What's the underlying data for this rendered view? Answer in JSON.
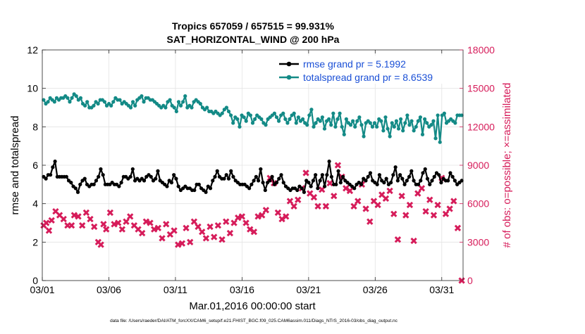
{
  "chart_data": {
    "type": "line",
    "title_line1": "Tropics 657059 / 657515 = 99.931%",
    "title_line2": "SAT_HORIZONTAL_WIND @ 200 hPa",
    "xlabel": "Mar.01,2016 00:00:00 start",
    "ylabel_left": "rmse and totalspread",
    "ylabel_right": "# of obs: o=possible; ×=assimilated",
    "footnote": "data file: /Users/raeder/DAI/ATM_forcXX/CAM6_setup/f.e21.FHIST_BGC.f09_025.CAM6assim.011/Diags_NTrS_2016-03/obs_diag_output.nc",
    "xlim": [
      0,
      31.6
    ],
    "ylim_left": [
      0,
      12
    ],
    "ylim_right": [
      0,
      18000
    ],
    "x_ticks": [
      0,
      5,
      10,
      15,
      20,
      25,
      30
    ],
    "x_tick_labels": [
      "03/01",
      "03/06",
      "03/11",
      "03/16",
      "03/21",
      "03/26",
      "03/31"
    ],
    "y_ticks_left": [
      0,
      2,
      4,
      6,
      8,
      10,
      12
    ],
    "y_ticks_right": [
      0,
      3000,
      6000,
      9000,
      12000,
      15000,
      18000
    ],
    "legend_position": "top-right",
    "colors": {
      "rmse": "#000000",
      "spread": "#138a86",
      "obs": "#d61c5a",
      "right_axis": "#d61c5a"
    },
    "series": [
      {
        "name": "rmse grand pr = 5.1992",
        "axis": "left",
        "marker": "dot",
        "values": [
          5.4,
          5.3,
          5.5,
          5.5,
          5.9,
          6.2,
          5.4,
          5.4,
          5.4,
          5.4,
          5.4,
          5.2,
          5.1,
          4.9,
          4.8,
          4.6,
          5.0,
          5.2,
          5.3,
          5.0,
          4.9,
          5.0,
          5.0,
          5.2,
          5.4,
          5.8,
          5.5,
          5.0,
          5.0,
          5.0,
          5.1,
          5.0,
          5.0,
          4.9,
          5.1,
          5.4,
          5.4,
          5.3,
          5.4,
          5.8,
          5.2,
          5.3,
          5.2,
          5.3,
          5.2,
          5.4,
          5.5,
          5.4,
          5.2,
          5.3,
          5.7,
          5.2,
          5.1,
          5.0,
          4.9,
          5.2,
          5.1,
          5.5,
          5.3,
          4.9,
          4.7,
          4.8,
          4.9,
          4.8,
          4.8,
          4.7,
          4.7,
          5.0,
          5.0,
          4.8,
          4.7,
          4.6,
          4.9,
          4.8,
          5.2,
          5.4,
          5.7,
          5.4,
          5.3,
          5.3,
          5.5,
          5.3,
          5.7,
          5.4,
          5.2,
          5.1,
          5.0,
          5.0,
          5.0,
          4.9,
          4.8,
          5.0,
          5.2,
          5.4,
          5.2,
          5.8,
          5.1,
          4.7,
          5.1,
          5.2,
          5.4,
          5.0,
          5.1,
          5.3,
          5.5,
          5.1,
          4.9,
          4.8,
          4.7,
          4.8,
          4.8,
          4.7,
          4.9,
          4.8,
          4.6,
          5.2,
          5.1,
          4.9,
          5.2,
          5.5,
          4.8,
          5.2,
          5.5,
          4.9,
          5.5,
          6.2,
          5.4,
          5.0,
          5.0,
          5.7,
          5.1,
          5.4,
          5.2,
          5.1,
          5.0,
          4.9,
          4.8,
          5.0,
          5.1,
          5.0,
          5.3,
          5.2,
          5.4,
          5.6,
          5.2,
          5.1,
          5.0,
          5.5,
          5.2,
          5.1,
          5.3,
          5.0,
          5.1,
          5.5,
          5.9,
          5.2,
          5.5,
          5.3,
          5.0,
          5.2,
          5.4,
          5.7,
          5.2,
          5.0,
          5.0,
          5.2,
          5.6,
          5.8,
          5.3,
          5.0,
          5.2,
          5.4,
          5.6,
          5.5,
          5.1,
          5.3,
          5.2,
          5.2,
          5.6,
          5.4,
          5.2,
          5.0,
          5.1,
          5.2
        ]
      },
      {
        "name": "totalspread grand pr = 8.6539",
        "axis": "left",
        "marker": "dot",
        "values": [
          9.4,
          9.2,
          9.3,
          9.5,
          9.4,
          9.3,
          9.5,
          9.4,
          9.5,
          9.5,
          9.6,
          9.5,
          9.3,
          9.5,
          9.7,
          9.6,
          9.4,
          9.5,
          9.2,
          9.1,
          9.3,
          9.0,
          9.0,
          9.1,
          9.3,
          9.2,
          9.4,
          9.4,
          9.3,
          9.1,
          9.2,
          9.1,
          9.3,
          9.5,
          9.4,
          9.4,
          9.2,
          9.3,
          9.2,
          9.1,
          9.0,
          9.3,
          9.1,
          9.4,
          9.5,
          9.6,
          9.3,
          9.5,
          9.5,
          9.4,
          9.4,
          9.3,
          9.2,
          9.1,
          9.0,
          9.1,
          9.0,
          9.3,
          9.4,
          9.1,
          9.0,
          8.8,
          9.3,
          9.1,
          9.3,
          9.6,
          9.0,
          9.1,
          9.0,
          9.3,
          9.4,
          9.3,
          9.2,
          9.0,
          8.9,
          9.0,
          8.8,
          8.8,
          8.7,
          8.8,
          8.7,
          8.6,
          8.7,
          8.9,
          9.0,
          8.8,
          8.6,
          8.2,
          8.5,
          8.4,
          8.0,
          8.6,
          8.5,
          8.3,
          8.7,
          8.6,
          8.2,
          8.4,
          8.6,
          8.5,
          8.4,
          8.2,
          8.1,
          8.4,
          8.5,
          8.6,
          8.7,
          8.5,
          8.3,
          8.6,
          8.7,
          8.4,
          8.2,
          8.4,
          8.6,
          8.7,
          8.2,
          8.5,
          8.3,
          8.4,
          8.2,
          8.1,
          8.6,
          8.9,
          8.0,
          8.2,
          8.4,
          8.3,
          8.5,
          7.9,
          8.3,
          8.4,
          8.1,
          8.7,
          8.0,
          8.4,
          8.7,
          8.0,
          7.6,
          8.4,
          8.2,
          8.1,
          8.3,
          8.0,
          8.3,
          8.5,
          8.1,
          7.5,
          8.2,
          8.3,
          8.2,
          8.0,
          8.2,
          8.0,
          8.4,
          8.3,
          7.8,
          8.5,
          7.9,
          7.5,
          8.2,
          8.0,
          8.3,
          7.9,
          8.4,
          7.8,
          8.2,
          8.6,
          8.1,
          8.3,
          7.8,
          8.0,
          8.3,
          8.5,
          7.6,
          8.4,
          8.2,
          8.0,
          8.1,
          8.3,
          7.4,
          8.6,
          7.2,
          8.6,
          8.7,
          8.2,
          8.3,
          8.4,
          8.3,
          8.2,
          8.6,
          8.6,
          8.6
        ]
      },
      {
        "name": "obs assimilated",
        "axis": "right",
        "marker": "x",
        "x": [
          0.1,
          0.3,
          0.5,
          0.7,
          1.0,
          1.3,
          1.6,
          1.9,
          2.2,
          2.4,
          2.7,
          3.0,
          3.3,
          3.6,
          3.9,
          4.2,
          4.4,
          4.6,
          4.8,
          5.1,
          5.4,
          5.7,
          6.0,
          6.3,
          6.6,
          6.9,
          7.2,
          7.5,
          7.8,
          8.1,
          8.4,
          8.7,
          9.0,
          9.3,
          9.6,
          9.9,
          10.2,
          10.5,
          10.8,
          11.1,
          11.4,
          11.7,
          12.0,
          12.3,
          12.6,
          12.9,
          13.2,
          13.5,
          13.8,
          14.1,
          14.4,
          14.7,
          15.0,
          15.3,
          15.6,
          15.9,
          16.2,
          16.5,
          16.8,
          17.1,
          17.4,
          17.7,
          18.0,
          18.3,
          18.6,
          18.9,
          19.2,
          19.5,
          19.8,
          20.1,
          20.4,
          20.7,
          21.0,
          21.3,
          21.6,
          21.9,
          22.2,
          22.5,
          22.8,
          23.1,
          23.4,
          23.7,
          24.0,
          24.3,
          24.6,
          24.9,
          25.2,
          25.5,
          25.8,
          26.1,
          26.4,
          26.7,
          27.0,
          27.3,
          27.6,
          27.9,
          28.2,
          28.5,
          28.8,
          29.1,
          29.4,
          29.7,
          30.0,
          30.3,
          30.6,
          30.9,
          31.2,
          31.5
        ],
        "values": [
          4300,
          4500,
          3900,
          4700,
          5400,
          5100,
          4800,
          4300,
          4300,
          5100,
          5000,
          4300,
          5300,
          4800,
          4200,
          3000,
          2800,
          4400,
          4000,
          5300,
          4400,
          4500,
          4000,
          4600,
          5000,
          4300,
          4000,
          3700,
          4600,
          4500,
          4000,
          4100,
          3300,
          4400,
          3600,
          3900,
          2800,
          2900,
          4100,
          3000,
          4600,
          4200,
          3800,
          3300,
          4200,
          3400,
          4300,
          3200,
          4600,
          3700,
          4500,
          4900,
          5000,
          4500,
          4000,
          3800,
          5000,
          5100,
          5500,
          8000,
          7600,
          5300,
          4800,
          5000,
          6200,
          5800,
          6300,
          7200,
          8400,
          6800,
          6500,
          5800,
          7100,
          5800,
          7600,
          6600,
          9000,
          8100,
          7200,
          7000,
          5800,
          6200,
          7500,
          5600,
          4600,
          6200,
          5900,
          6700,
          6400,
          7000,
          5200,
          3200,
          6600,
          5100,
          5900,
          3100,
          6800,
          7200,
          5400,
          6300,
          5100,
          5900,
          8000,
          5200,
          5600,
          6200,
          4100,
          0
        ]
      }
    ]
  }
}
